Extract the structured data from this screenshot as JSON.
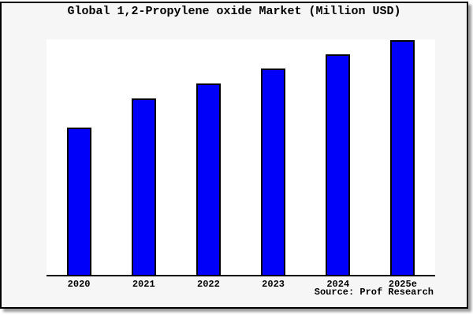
{
  "header": {
    "title": "Global 1,2-Propylene oxide Market (Million USD)"
  },
  "footer": {
    "source_label": "Source: Prof Research"
  },
  "colors": {
    "bar_fill": "#0000fa",
    "bar_border": "#000000",
    "frame_background": "#f6f6f6",
    "plot_background": "#ffffff",
    "axis_line": "#000000",
    "frame_border": "#000000"
  },
  "chart_data": {
    "type": "bar",
    "title": "Global 1,2-Propylene oxide Market (Million USD)",
    "categories": [
      "2020",
      "2021",
      "2022",
      "2023",
      "2024",
      "2025e"
    ],
    "values_relative_height_pct": [
      62.8,
      75.2,
      81.5,
      87.9,
      94.0,
      100
    ],
    "value_basis": "Bar heights as percent of tallest bar (2025e); no y-axis scale, gridlines or data labels are shown in the chart.",
    "xlabel": "",
    "ylabel": "",
    "ylim_pct": [
      0,
      100
    ],
    "grid": false,
    "legend_position": "none",
    "source": "Source: Prof Research"
  }
}
